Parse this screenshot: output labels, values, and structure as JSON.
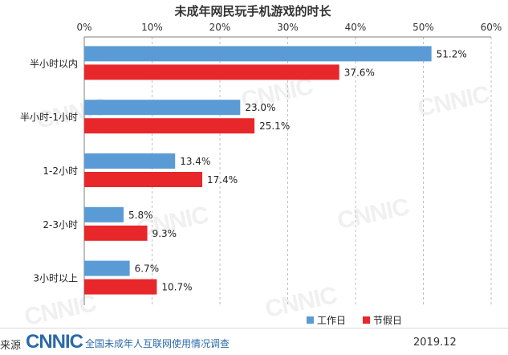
{
  "colors": {
    "workday": "#5b9bd5",
    "holiday": "#e8272a",
    "grid": "#bfbfbf",
    "axis": "#7f7f7f"
  },
  "chart_data": {
    "type": "bar",
    "orientation": "horizontal",
    "title": "未成年网民玩手机游戏的时长",
    "categories": [
      "半小时以内",
      "半小时-1小时",
      "1-2小时",
      "2-3小时",
      "3小时以上"
    ],
    "series": [
      {
        "name": "工作日",
        "values": [
          51.2,
          23.0,
          13.4,
          5.8,
          6.7
        ],
        "labels": [
          "51.2%",
          "23.0%",
          "13.4%",
          "5.8%",
          "6.7%"
        ]
      },
      {
        "name": "节假日",
        "values": [
          37.6,
          25.1,
          17.4,
          9.3,
          10.7
        ],
        "labels": [
          "37.6%",
          "25.1%",
          "17.4%",
          "9.3%",
          "10.7%"
        ]
      }
    ],
    "xlim": [
      0,
      60
    ],
    "xticks": [
      "0%",
      "10%",
      "20%",
      "30%",
      "40%",
      "50%",
      "60%"
    ],
    "x_axis_position": "top",
    "grid": true,
    "legend_position": "bottom-right"
  },
  "watermark": "CNNIC",
  "footer": {
    "source": "来源",
    "logo": "CNNIC",
    "survey": "全国未成年人互联网使用情况调查",
    "date": "2019.12"
  }
}
